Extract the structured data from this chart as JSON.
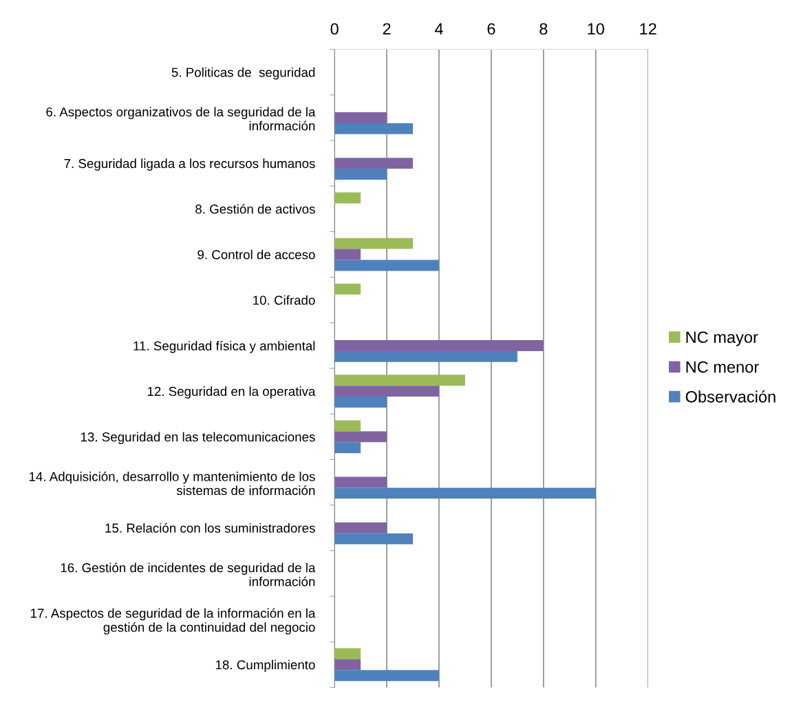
{
  "chart_data": {
    "type": "bar",
    "orientation": "horizontal",
    "categories": [
      "5. Politicas de  seguridad",
      "6. Aspectos organizativos de la seguridad de la\ninformación",
      "7. Seguridad ligada a los recursos humanos",
      "8. Gestión de activos",
      "9. Control de acceso",
      "10. Cifrado",
      "11. Seguridad física y ambiental",
      "12. Seguridad en la operativa",
      "13. Seguridad en las telecomunicaciones",
      "14. Adquisición, desarrollo y mantenimiento de los\nsistemas de información",
      "15. Relación con los suministradores",
      "16. Gestión de incidentes de seguridad de la\ninformación",
      "17. Aspectos de seguridad de la información en la\ngestión de la continuidad del negocio",
      "18. Cumplimiento"
    ],
    "series": [
      {
        "name": "NC mayor",
        "color": "#9bbb59",
        "values": [
          0,
          0,
          0,
          1,
          3,
          1,
          0,
          5,
          1,
          0,
          0,
          0,
          0,
          1
        ]
      },
      {
        "name": "NC menor",
        "color": "#8064a2",
        "values": [
          0,
          2,
          3,
          0,
          1,
          0,
          8,
          4,
          2,
          2,
          2,
          0,
          0,
          1
        ]
      },
      {
        "name": "Observación",
        "color": "#4f81bd",
        "values": [
          0,
          3,
          2,
          0,
          4,
          0,
          7,
          2,
          1,
          10,
          3,
          0,
          0,
          4
        ]
      }
    ],
    "xlim": [
      0,
      12
    ],
    "xticks": [
      0,
      2,
      4,
      6,
      8,
      10,
      12
    ],
    "grid": "x",
    "legend": "right"
  }
}
